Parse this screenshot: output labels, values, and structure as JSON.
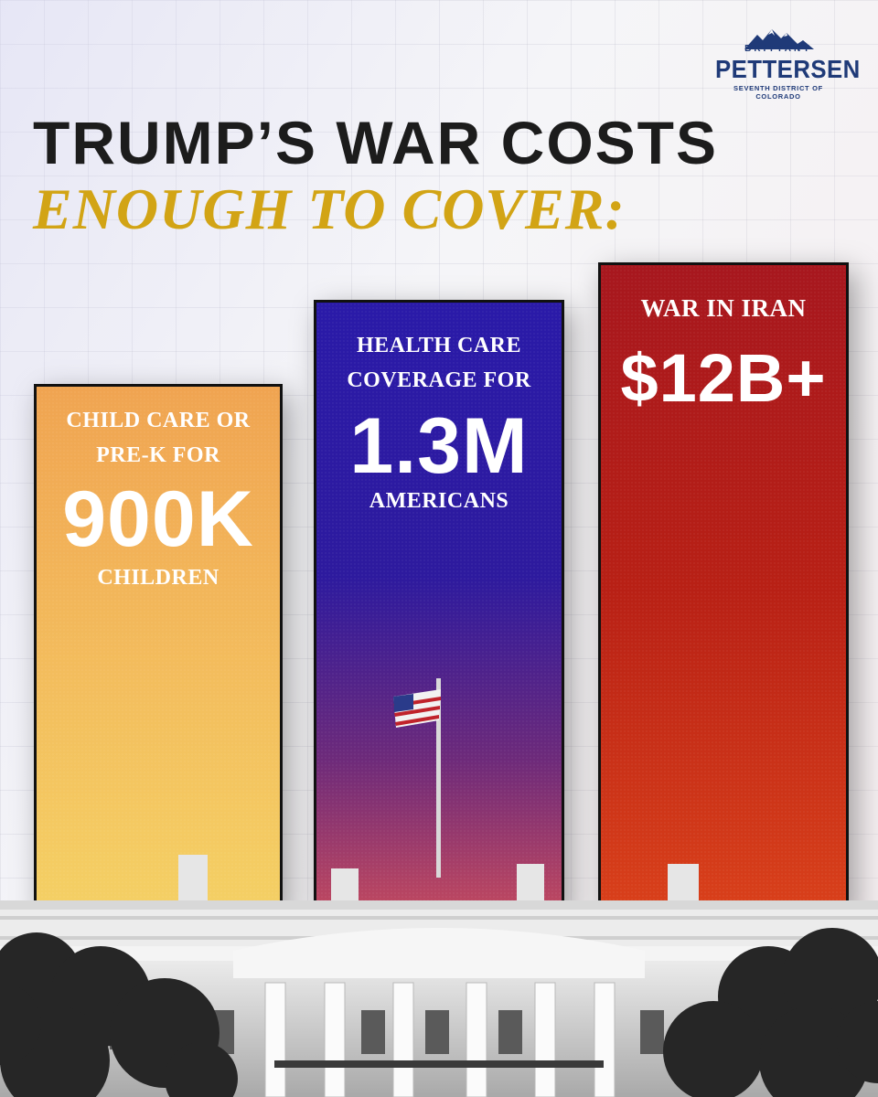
{
  "logo": {
    "first_name": "BRITTANY",
    "last_name": "PETTERSEN",
    "district": "SEVENTH DISTRICT OF COLORADO",
    "icon": "mountain-icon",
    "color": "#1f3a78"
  },
  "headline": {
    "line1": "TRUMP’S WAR COSTS",
    "line2": "ENOUGH TO COVER:",
    "line1_color": "#1c1c1c",
    "line2_color": "#d2a415"
  },
  "bars": [
    {
      "label": "CHILD CARE OR PRE-K FOR",
      "figure": "900K",
      "sublabel": "CHILDREN",
      "color": "#f2b258"
    },
    {
      "label": "HEALTH CARE COVERAGE FOR",
      "figure": "1.3M",
      "sublabel": "AMERICANS",
      "color": "#2a1aa8"
    },
    {
      "label": "WAR IN IRAN",
      "figure": "$12B+",
      "color": "#b82015"
    }
  ],
  "background_image": "white-house-with-flag-and-trees"
}
